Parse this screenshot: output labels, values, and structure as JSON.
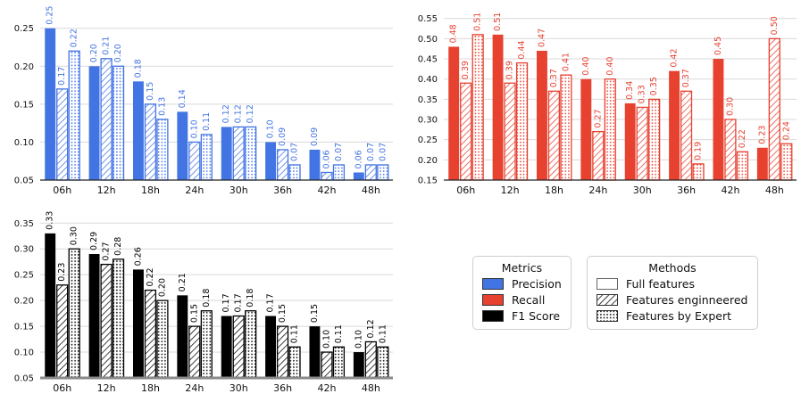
{
  "colors": {
    "precision": "#4374E4",
    "recall": "#E74130",
    "f1": "#000000",
    "grid": "#d9d9d9",
    "axis_dark": "#262626",
    "axis_gray": "#8a8a8a",
    "tick_label": "#111111",
    "legend_border": "#cfcfcf"
  },
  "categories": [
    "06h",
    "12h",
    "18h",
    "24h",
    "30h",
    "36h",
    "42h",
    "48h"
  ],
  "chart_data": [
    {
      "type": "bar",
      "metric": "Precision",
      "color_key": "precision",
      "title": "",
      "xlabel": "",
      "ylabel": "",
      "grid": true,
      "bar_labels": true,
      "categories": [
        "06h",
        "12h",
        "18h",
        "24h",
        "30h",
        "36h",
        "42h",
        "48h"
      ],
      "ylim": [
        0.05,
        0.272
      ],
      "yticks": [
        0.05,
        0.1,
        0.15,
        0.2,
        0.25
      ],
      "series": [
        {
          "name": "Full features",
          "style": "solid",
          "values": [
            0.25,
            0.2,
            0.18,
            0.14,
            0.12,
            0.1,
            0.09,
            0.06
          ]
        },
        {
          "name": "Features enginneered",
          "style": "hatch",
          "values": [
            0.17,
            0.21,
            0.15,
            0.1,
            0.12,
            0.09,
            0.06,
            0.07
          ]
        },
        {
          "name": "Features by Expert",
          "style": "dots",
          "values": [
            0.22,
            0.2,
            0.13,
            0.11,
            0.12,
            0.07,
            0.07,
            0.07
          ]
        }
      ]
    },
    {
      "type": "bar",
      "metric": "Recall",
      "color_key": "recall",
      "title": "",
      "xlabel": "",
      "ylabel": "",
      "grid": true,
      "bar_labels": true,
      "categories": [
        "06h",
        "12h",
        "18h",
        "24h",
        "30h",
        "36h",
        "42h",
        "48h"
      ],
      "ylim": [
        0.15,
        0.567
      ],
      "yticks": [
        0.15,
        0.2,
        0.25,
        0.3,
        0.35,
        0.4,
        0.45,
        0.5,
        0.55
      ],
      "series": [
        {
          "name": "Full features",
          "style": "solid",
          "values": [
            0.48,
            0.51,
            0.47,
            0.4,
            0.34,
            0.42,
            0.45,
            0.23
          ]
        },
        {
          "name": "Features enginneered",
          "style": "hatch",
          "values": [
            0.39,
            0.39,
            0.37,
            0.27,
            0.33,
            0.37,
            0.3,
            0.5
          ]
        },
        {
          "name": "Features by Expert",
          "style": "dots",
          "values": [
            0.51,
            0.44,
            0.41,
            0.4,
            0.35,
            0.19,
            0.22,
            0.24
          ]
        }
      ]
    },
    {
      "type": "bar",
      "metric": "F1 Score",
      "color_key": "f1",
      "title": "",
      "xlabel": "",
      "ylabel": "",
      "grid": true,
      "bar_labels": true,
      "categories": [
        "06h",
        "12h",
        "18h",
        "24h",
        "30h",
        "36h",
        "42h",
        "48h"
      ],
      "ylim": [
        0.05,
        0.366
      ],
      "yticks": [
        0.05,
        0.1,
        0.15,
        0.2,
        0.25,
        0.3,
        0.35
      ],
      "series": [
        {
          "name": "Full features",
          "style": "solid",
          "values": [
            0.33,
            0.29,
            0.26,
            0.21,
            0.17,
            0.17,
            0.15,
            0.1
          ]
        },
        {
          "name": "Features enginneered",
          "style": "hatch",
          "values": [
            0.23,
            0.27,
            0.22,
            0.15,
            0.17,
            0.15,
            0.1,
            0.12
          ]
        },
        {
          "name": "Features by Expert",
          "style": "dots",
          "values": [
            0.3,
            0.28,
            0.2,
            0.18,
            0.18,
            0.11,
            0.11,
            0.11
          ]
        }
      ]
    }
  ],
  "legends": {
    "metrics": {
      "title": "Metrics",
      "items": [
        {
          "label": "Precision",
          "style": "solid",
          "color_key": "precision"
        },
        {
          "label": "Recall",
          "style": "solid",
          "color_key": "recall"
        },
        {
          "label": "F1 Score",
          "style": "solid",
          "color_key": "f1"
        }
      ]
    },
    "methods": {
      "title": "Methods",
      "items": [
        {
          "label": "Full features",
          "style": "empty"
        },
        {
          "label": "Features enginneered",
          "style": "hatch"
        },
        {
          "label": "Features by Expert",
          "style": "dots"
        }
      ]
    }
  }
}
